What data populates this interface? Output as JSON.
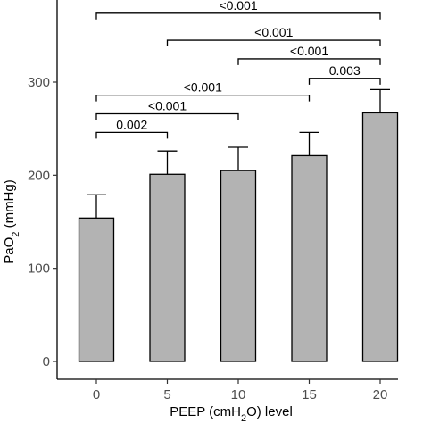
{
  "chart_data": {
    "type": "bar",
    "categories": [
      "0",
      "5",
      "10",
      "15",
      "20"
    ],
    "values": [
      154,
      201,
      205,
      221,
      267
    ],
    "error_upper": [
      179,
      226,
      230,
      246,
      292
    ],
    "ylim": [
      0,
      380
    ],
    "yticks": [
      "0",
      "100",
      "200",
      "300"
    ],
    "ytick_values": [
      0,
      100,
      200,
      300
    ],
    "xlabel": {
      "pre": "PEEP (cmH",
      "sub": "2",
      "post": "O) level"
    },
    "ylabel": {
      "pre": "PaO",
      "sub": "2",
      "post": " (mmHg)"
    },
    "bar_color": "#b3b3b3",
    "grid": false,
    "significance": [
      {
        "from": "0",
        "to": "20",
        "label": "<0.001",
        "y": 374
      },
      {
        "from": "5",
        "to": "20",
        "label": "<0.001",
        "y": 345
      },
      {
        "from": "10",
        "to": "20",
        "label": "<0.001",
        "y": 325
      },
      {
        "from": "15",
        "to": "20",
        "label": "0.003",
        "y": 304
      },
      {
        "from": "0",
        "to": "15",
        "label": "<0.001",
        "y": 286
      },
      {
        "from": "0",
        "to": "10",
        "label": "<0.001",
        "y": 266
      },
      {
        "from": "0",
        "to": "5",
        "label": "0.002",
        "y": 246
      }
    ]
  }
}
